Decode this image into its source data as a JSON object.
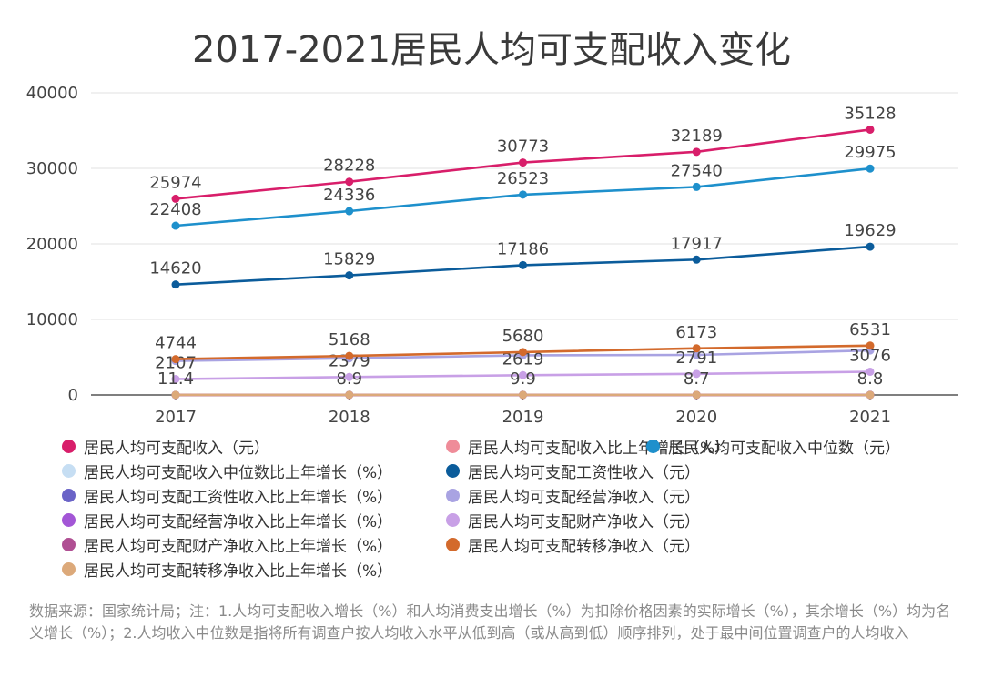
{
  "chart_data": {
    "type": "line",
    "title": "2017-2021居民人均可支配收入变化",
    "categories": [
      "2017",
      "2018",
      "2019",
      "2020",
      "2021"
    ],
    "ylim": [
      0,
      40000
    ],
    "yticks": [
      "0",
      "10000",
      "20000",
      "30000",
      "40000"
    ],
    "grid": true,
    "legend_position": "bottom",
    "series": [
      {
        "name": "居民人均可支配收入（元）",
        "color": "#d81e6a",
        "values": [
          25974,
          28228,
          30773,
          32189,
          35128
        ],
        "labels": [
          "25974",
          "28228",
          "30773",
          "32189",
          "35128"
        ]
      },
      {
        "name": "居民人均可支配收入比上年增长（%）",
        "color": "#ef8c99",
        "values": [
          9.0,
          8.7,
          8.9,
          4.7,
          9.1
        ],
        "labels": []
      },
      {
        "name": "居民人均可支配收入中位数（元）",
        "color": "#1e90cc",
        "values": [
          22408,
          24336,
          26523,
          27540,
          29975
        ],
        "labels": [
          "22408",
          "24336",
          "26523",
          "27540",
          "29975"
        ]
      },
      {
        "name": "居民人均可支配收入中位数比上年增长（%）",
        "color": "#c6def3",
        "values": [
          7.3,
          8.6,
          9.0,
          3.8,
          8.8
        ],
        "labels": []
      },
      {
        "name": "居民人均可支配工资性收入（元）",
        "color": "#0b5c9b",
        "values": [
          14620,
          15829,
          17186,
          17917,
          19629
        ],
        "labels": [
          "14620",
          "15829",
          "17186",
          "17917",
          "19629"
        ]
      },
      {
        "name": "居民人均可支配工资性收入比上年增长（%）",
        "color": "#6a63c7",
        "values": [
          8.9,
          8.3,
          8.6,
          4.3,
          9.6
        ],
        "labels": []
      },
      {
        "name": "居民人均可支配经营净收入（元）",
        "color": "#a9a3e2",
        "values": [
          4502,
          4852,
          5247,
          5307,
          5893
        ],
        "labels": []
      },
      {
        "name": "居民人均可支配经营净收入比上年增长（%）",
        "color": "#a356d6",
        "values": [
          6.7,
          7.8,
          8.1,
          1.1,
          11.0
        ],
        "labels": []
      },
      {
        "name": "居民人均可支配财产净收入（元）",
        "color": "#c8a0e6",
        "values": [
          2107,
          2379,
          2619,
          2791,
          3076
        ],
        "labels": [
          "2107",
          "2379",
          "2619",
          "2791",
          "3076"
        ]
      },
      {
        "name": "居民人均可支配财产净收入比上年增长（%）",
        "color": "#b04f93",
        "values": [
          11.4,
          8.9,
          9.9,
          8.7,
          8.8
        ],
        "labels": [
          "11.4",
          "8.9",
          "9.9",
          "8.7",
          "8.8"
        ]
      },
      {
        "name": "居民人均可支配转移净收入（元）",
        "color": "#d36a2c",
        "values": [
          4744,
          5168,
          5680,
          6173,
          6531
        ],
        "labels": [
          "4744",
          "5168",
          "5680",
          "6173",
          "6531"
        ]
      },
      {
        "name": "居民人均可支配转移净收入比上年增长（%）",
        "color": "#dca97a",
        "values": [
          9.0,
          8.9,
          9.9,
          8.7,
          5.8
        ],
        "labels": []
      }
    ]
  },
  "source_note": "数据来源：国家统计局；注：1.人均可支配收入增长（%）和人均消费支出增长（%）为扣除价格因素的实际增长（%），其余增长（%）均为名义增长（%）；2.人均收入中位数是指将所有调查户按人均收入水平从低到高（或从高到低）顺序排列，处于最中间位置调查户的人均收入"
}
